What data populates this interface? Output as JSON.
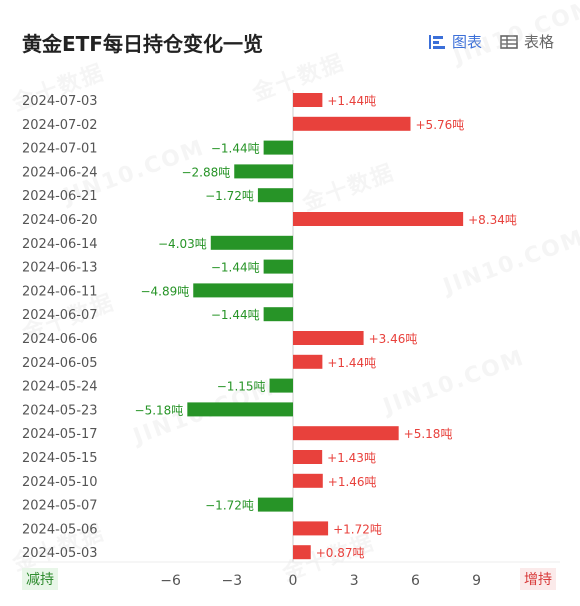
{
  "title": "黄金ETF每日持仓变化一览",
  "view_toggle": {
    "chart_label": "图表",
    "table_label": "表格"
  },
  "axis_ends": {
    "left_label": "减持",
    "right_label": "增持"
  },
  "watermark": {
    "text": "金十数据",
    "latin": "JIN10.COM"
  },
  "colors": {
    "increase": "#e8413c",
    "decrease": "#279427",
    "increase_text": "#e8413c",
    "decrease_text": "#279427",
    "accent": "#3b6fd8"
  },
  "chart_data": {
    "type": "bar",
    "orientation": "horizontal",
    "value_suffix": "吨",
    "categories": [
      "2024-07-03",
      "2024-07-02",
      "2024-07-01",
      "2024-06-24",
      "2024-06-21",
      "2024-06-20",
      "2024-06-14",
      "2024-06-13",
      "2024-06-11",
      "2024-06-07",
      "2024-06-06",
      "2024-06-05",
      "2024-05-24",
      "2024-05-23",
      "2024-05-17",
      "2024-05-15",
      "2024-05-10",
      "2024-05-07",
      "2024-05-06",
      "2024-05-03"
    ],
    "values": [
      1.44,
      5.76,
      -1.44,
      -2.88,
      -1.72,
      8.34,
      -4.03,
      -1.44,
      -4.89,
      -1.44,
      3.46,
      1.44,
      -1.15,
      -5.18,
      5.18,
      1.43,
      1.46,
      -1.72,
      1.72,
      0.87
    ],
    "labels": [
      "+1.44吨",
      "+5.76吨",
      "−1.44吨",
      "−2.88吨",
      "−1.72吨",
      "+8.34吨",
      "−4.03吨",
      "−1.44吨",
      "−4.89吨",
      "−1.44吨",
      "+3.46吨",
      "+1.44吨",
      "−1.15吨",
      "−5.18吨",
      "+5.18吨",
      "+1.43吨",
      "+1.46吨",
      "−1.72吨",
      "+1.72吨",
      "+0.87吨"
    ],
    "x_ticks": [
      -6,
      -3,
      0,
      3,
      6,
      9
    ],
    "x_tick_labels": [
      "−6",
      "−3",
      "0",
      "3",
      "6",
      "9"
    ],
    "xlim": [
      -6.3,
      9.5
    ],
    "grid": false,
    "legend": "none"
  }
}
